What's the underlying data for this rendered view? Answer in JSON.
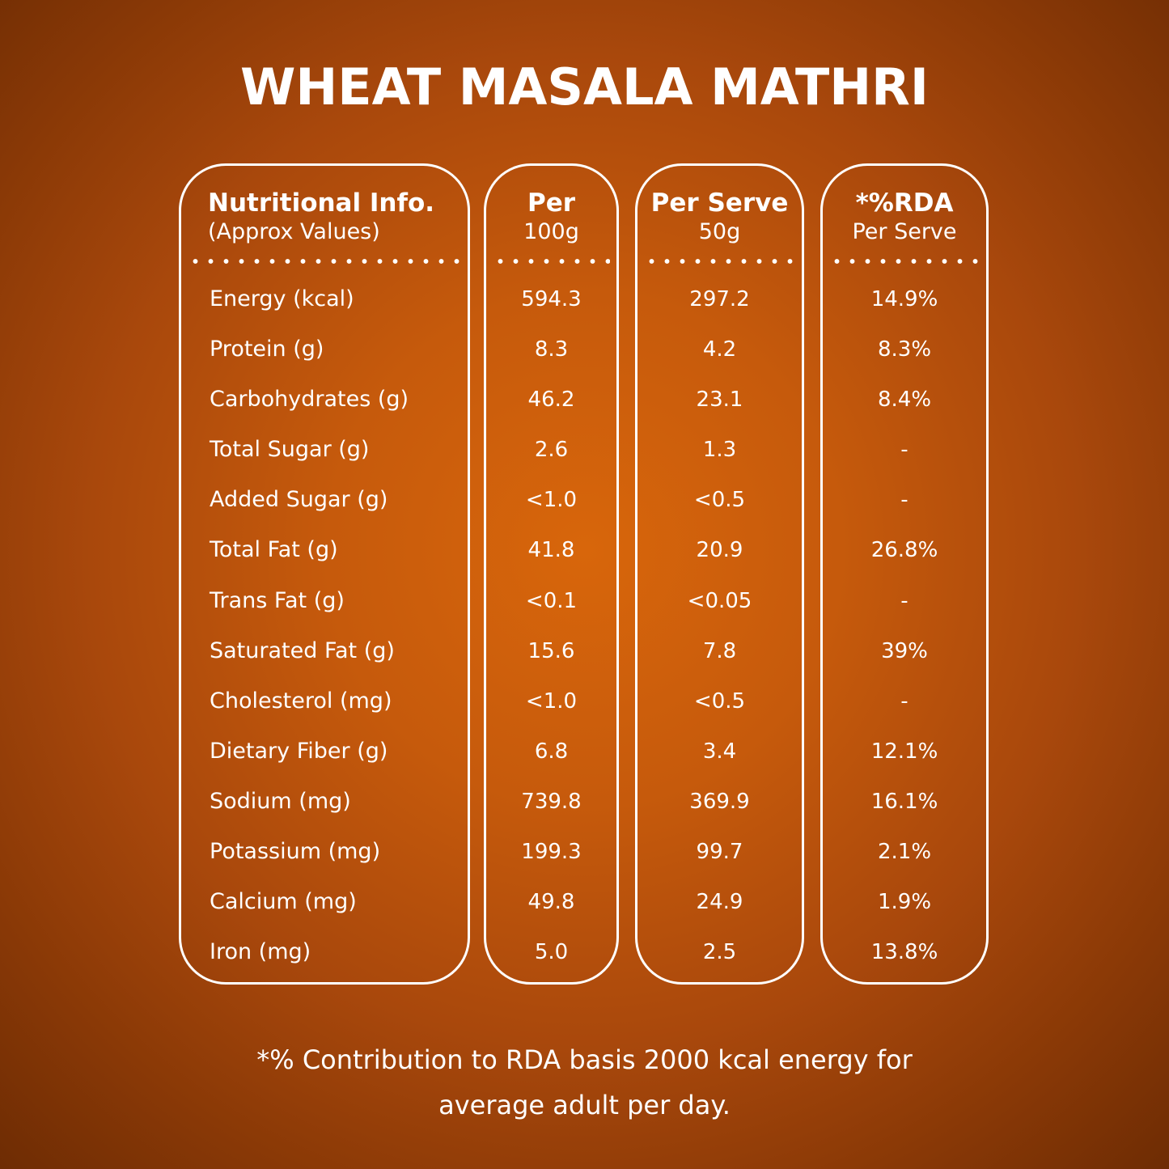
{
  "title": "WHEAT MASALA MATHRI",
  "headers": {
    "nutrient": {
      "main": "Nutritional Info.",
      "sub": "(Approx Values)"
    },
    "per100": {
      "main": "Per",
      "sub": "100g"
    },
    "serve": {
      "main": "Per Serve",
      "sub": "50g"
    },
    "rda": {
      "main": "*%RDA",
      "sub": "Per Serve"
    }
  },
  "rows": [
    {
      "nutrient": "Energy (kcal)",
      "per100": "594.3",
      "serve": "297.2",
      "rda": "14.9%"
    },
    {
      "nutrient": "Protein (g)",
      "per100": "8.3",
      "serve": "4.2",
      "rda": "8.3%"
    },
    {
      "nutrient": "Carbohydrates (g)",
      "per100": "46.2",
      "serve": "23.1",
      "rda": "8.4%"
    },
    {
      "nutrient": "Total Sugar (g)",
      "per100": "2.6",
      "serve": "1.3",
      "rda": "-"
    },
    {
      "nutrient": "Added Sugar (g)",
      "per100": "<1.0",
      "serve": "<0.5",
      "rda": "-"
    },
    {
      "nutrient": "Total Fat (g)",
      "per100": "41.8",
      "serve": "20.9",
      "rda": "26.8%"
    },
    {
      "nutrient": "Trans Fat (g)",
      "per100": "<0.1",
      "serve": "<0.05",
      "rda": "-"
    },
    {
      "nutrient": "Saturated Fat (g)",
      "per100": "15.6",
      "serve": "7.8",
      "rda": "39%"
    },
    {
      "nutrient": "Cholesterol (mg)",
      "per100": "<1.0",
      "serve": "<0.5",
      "rda": "-"
    },
    {
      "nutrient": "Dietary Fiber (g)",
      "per100": "6.8",
      "serve": "3.4",
      "rda": "12.1%"
    },
    {
      "nutrient": "Sodium (mg)",
      "per100": "739.8",
      "serve": "369.9",
      "rda": "16.1%"
    },
    {
      "nutrient": "Potassium (mg)",
      "per100": "199.3",
      "serve": "99.7",
      "rda": "2.1%"
    },
    {
      "nutrient": "Calcium (mg)",
      "per100": "49.8",
      "serve": "24.9",
      "rda": "1.9%"
    },
    {
      "nutrient": "Iron (mg)",
      "per100": "5.0",
      "serve": "2.5",
      "rda": "13.8%"
    }
  ],
  "footnote": {
    "line1": "*% Contribution to RDA basis 2000 kcal energy for",
    "line2": "average adult per day."
  },
  "colors": {
    "background": "#c65a0c",
    "text": "#ffffff"
  }
}
